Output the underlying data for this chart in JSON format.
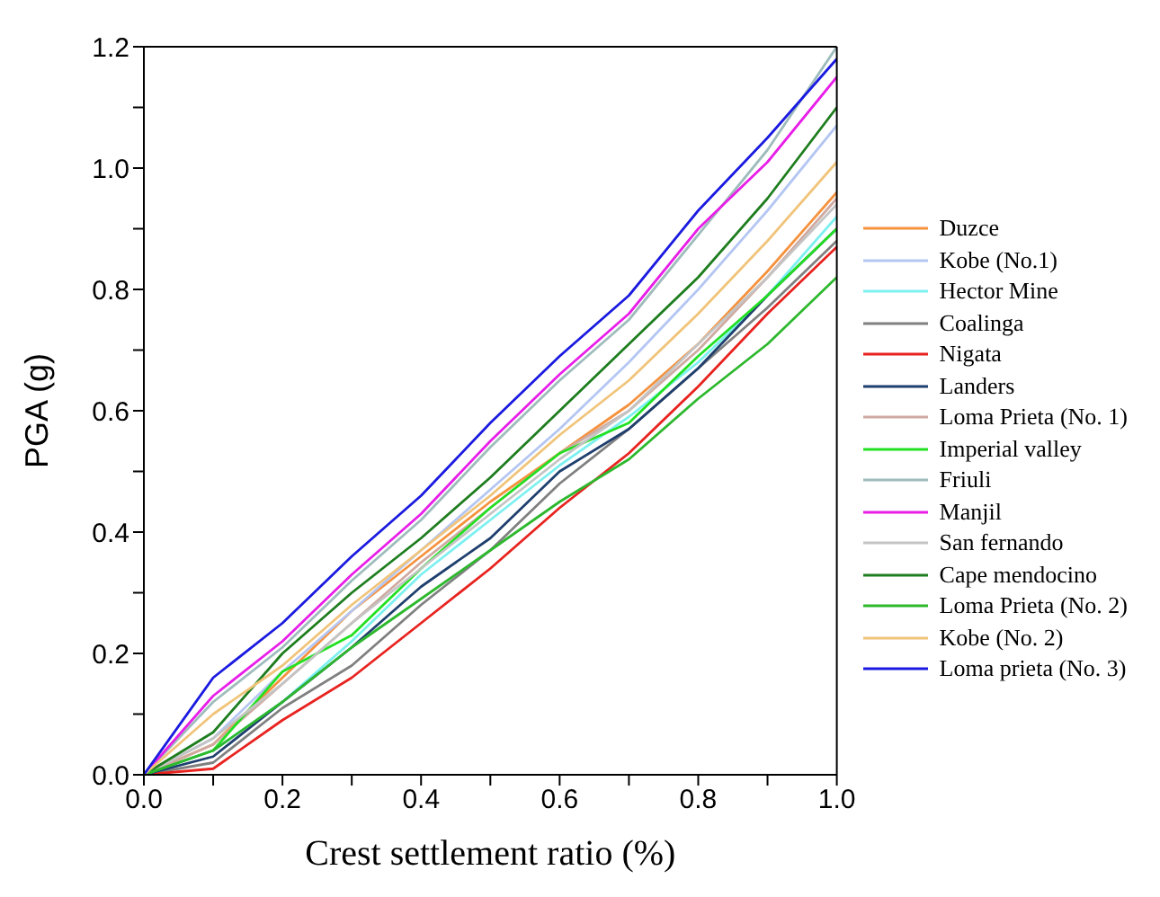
{
  "chart_data": {
    "type": "line",
    "xlabel": "Crest settlement ratio (%)",
    "ylabel": "PGA (g)",
    "x": [
      0,
      0.1,
      0.2,
      0.3,
      0.4,
      0.5,
      0.6,
      0.7,
      0.8,
      0.9,
      1.0
    ],
    "xlim": [
      0,
      1
    ],
    "ylim": [
      0,
      1.2
    ],
    "xticks": [
      {
        "value": 0,
        "label": "0.0"
      },
      {
        "value": 0.1,
        "label": null
      },
      {
        "value": 0.2,
        "label": "0.2"
      },
      {
        "value": 0.3,
        "label": null
      },
      {
        "value": 0.4,
        "label": "0.4"
      },
      {
        "value": 0.5,
        "label": null
      },
      {
        "value": 0.6,
        "label": "0.6"
      },
      {
        "value": 0.7,
        "label": null
      },
      {
        "value": 0.8,
        "label": "0.8"
      },
      {
        "value": 0.9,
        "label": null
      },
      {
        "value": 1,
        "label": "1.0"
      }
    ],
    "yticks": [
      {
        "value": 0,
        "label": "0.0"
      },
      {
        "value": 0.1,
        "label": null
      },
      {
        "value": 0.2,
        "label": "0.2"
      },
      {
        "value": 0.3,
        "label": null
      },
      {
        "value": 0.4,
        "label": "0.4"
      },
      {
        "value": 0.5,
        "label": null
      },
      {
        "value": 0.6,
        "label": "0.6"
      },
      {
        "value": 0.7,
        "label": null
      },
      {
        "value": 0.8,
        "label": "0.8"
      },
      {
        "value": 0.9,
        "label": null
      },
      {
        "value": 1,
        "label": "1.0"
      },
      {
        "value": 1.1,
        "label": null
      },
      {
        "value": 1.2,
        "label": "1.2"
      }
    ],
    "grid": false,
    "legend": "right",
    "marker": "none",
    "line_style": "solid",
    "series": [
      {
        "name": "Duzce",
        "color": "#f5923e",
        "values": [
          0,
          0.05,
          0.16,
          0.27,
          0.36,
          0.45,
          0.53,
          0.61,
          0.71,
          0.83,
          0.96
        ]
      },
      {
        "name": "Kobe (No.1)",
        "color": "#b4c6f2",
        "values": [
          0,
          0.06,
          0.17,
          0.27,
          0.37,
          0.47,
          0.57,
          0.68,
          0.8,
          0.93,
          1.07
        ]
      },
      {
        "name": "Hector Mine",
        "color": "#7df0f0",
        "values": [
          0,
          0.04,
          0.12,
          0.22,
          0.33,
          0.42,
          0.51,
          0.59,
          0.68,
          0.79,
          0.92
        ]
      },
      {
        "name": "Coalinga",
        "color": "#808080",
        "values": [
          0,
          0.02,
          0.11,
          0.18,
          0.28,
          0.37,
          0.48,
          0.57,
          0.67,
          0.77,
          0.88
        ]
      },
      {
        "name": "Nigata",
        "color": "#e8231f",
        "values": [
          0,
          0.01,
          0.09,
          0.16,
          0.25,
          0.34,
          0.44,
          0.53,
          0.64,
          0.76,
          0.87
        ]
      },
      {
        "name": "Landers",
        "color": "#1f3f6e",
        "values": [
          0,
          0.03,
          0.12,
          0.21,
          0.31,
          0.39,
          0.5,
          0.57,
          0.67,
          0.79,
          0.9
        ]
      },
      {
        "name": "Loma Prieta (No. 1)",
        "color": "#cfaaa2",
        "values": [
          0,
          0.05,
          0.15,
          0.25,
          0.35,
          0.44,
          0.53,
          0.6,
          0.7,
          0.82,
          0.95
        ]
      },
      {
        "name": "Imperial valley",
        "color": "#22e022",
        "values": [
          0,
          0.04,
          0.17,
          0.23,
          0.34,
          0.44,
          0.53,
          0.58,
          0.69,
          0.79,
          0.9
        ]
      },
      {
        "name": "Friuli",
        "color": "#9fbcbc",
        "values": [
          0,
          0.12,
          0.21,
          0.32,
          0.42,
          0.54,
          0.65,
          0.75,
          0.89,
          1.03,
          1.2
        ]
      },
      {
        "name": "Manjil",
        "color": "#e81ee8",
        "values": [
          0,
          0.13,
          0.22,
          0.33,
          0.43,
          0.55,
          0.66,
          0.76,
          0.9,
          1.01,
          1.15
        ]
      },
      {
        "name": "San fernando",
        "color": "#c4c4c4",
        "values": [
          0,
          0.06,
          0.15,
          0.25,
          0.34,
          0.43,
          0.52,
          0.6,
          0.71,
          0.82,
          0.94
        ]
      },
      {
        "name": "Cape mendocino",
        "color": "#1e7d1e",
        "values": [
          0,
          0.07,
          0.2,
          0.3,
          0.39,
          0.49,
          0.6,
          0.71,
          0.82,
          0.95,
          1.1
        ]
      },
      {
        "name": "Loma Prieta (No. 2)",
        "color": "#2eb82e",
        "values": [
          0,
          0.04,
          0.12,
          0.21,
          0.29,
          0.37,
          0.45,
          0.52,
          0.62,
          0.71,
          0.82
        ]
      },
      {
        "name": "Kobe (No. 2)",
        "color": "#f0c47a",
        "values": [
          0,
          0.1,
          0.18,
          0.28,
          0.37,
          0.46,
          0.56,
          0.65,
          0.76,
          0.88,
          1.01
        ]
      },
      {
        "name": "Loma prieta (No. 3)",
        "color": "#1a1ae0",
        "values": [
          0,
          0.16,
          0.25,
          0.36,
          0.46,
          0.58,
          0.69,
          0.79,
          0.93,
          1.05,
          1.18
        ]
      }
    ]
  }
}
